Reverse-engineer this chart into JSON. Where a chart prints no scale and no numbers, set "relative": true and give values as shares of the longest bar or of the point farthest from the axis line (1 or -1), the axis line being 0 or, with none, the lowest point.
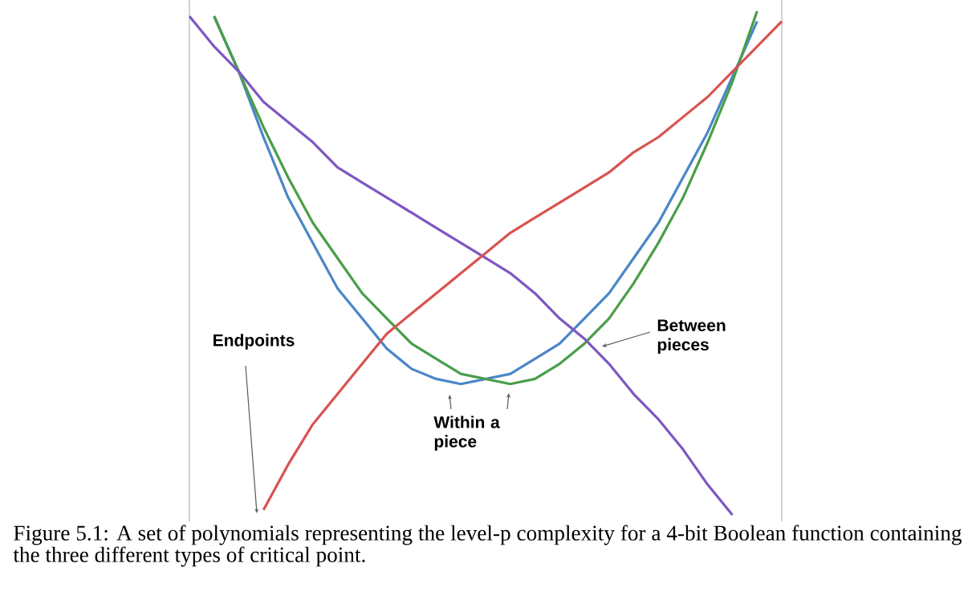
{
  "chart_data": {
    "type": "line",
    "relative": true,
    "categories": [
      null,
      null,
      null,
      null,
      null,
      null,
      null,
      null,
      null,
      null,
      null,
      null,
      null,
      null,
      null,
      null,
      null,
      null,
      null,
      null,
      null,
      null,
      null,
      null,
      null
    ],
    "series": [
      {
        "color": "#4a86c8",
        "values": [
          null,
          0.99,
          0.88,
          0.75,
          0.63,
          0.54,
          0.45,
          0.39,
          0.33,
          0.29,
          0.27,
          0.26,
          0.27,
          0.28,
          0.31,
          0.34,
          0.39,
          0.44,
          0.51,
          0.58,
          0.67,
          0.76,
          0.87,
          0.98,
          null
        ]
      },
      {
        "color": "#4a9e4a",
        "values": [
          null,
          0.99,
          0.88,
          0.77,
          0.67,
          0.58,
          0.51,
          0.44,
          0.39,
          0.34,
          0.31,
          0.28,
          0.27,
          0.26,
          0.27,
          0.3,
          0.34,
          0.39,
          0.46,
          0.54,
          0.63,
          0.74,
          0.86,
          1,
          null
        ]
      },
      {
        "color": "#7e57c2",
        "values": [
          0.99,
          0.93,
          0.88,
          0.82,
          0.78,
          0.74,
          0.69,
          0.66,
          0.63,
          0.6,
          0.57,
          0.54,
          0.51,
          0.48,
          0.44,
          0.39,
          0.35,
          0.3,
          0.24,
          0.19,
          0.13,
          0.06,
          0,
          null,
          null
        ]
      },
      {
        "color": "#d9534f",
        "values": [
          null,
          null,
          null,
          0.01,
          0.1,
          0.18,
          0.24,
          0.3,
          0.36,
          0.4,
          0.44,
          0.48,
          0.52,
          0.56,
          0.59,
          0.62,
          0.65,
          0.68,
          0.72,
          0.75,
          0.79,
          0.83,
          0.88,
          0.93,
          0.98
        ]
      }
    ],
    "annotations": [
      "Endpoints",
      "Within a piece",
      "Between pieces",
      "Figure 5.1: A set of polynomials representing the level-p complexity for a 4-bit Boolean function containing the three different types of critical point."
    ]
  }
}
